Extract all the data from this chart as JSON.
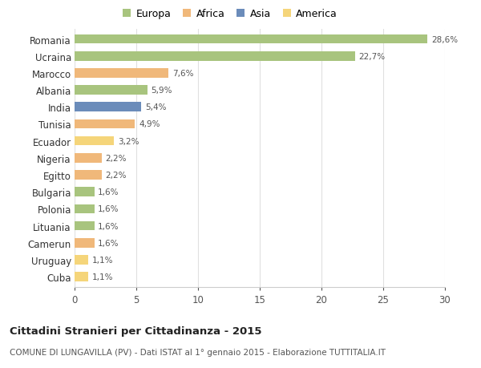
{
  "categories": [
    "Romania",
    "Ucraina",
    "Marocco",
    "Albania",
    "India",
    "Tunisia",
    "Ecuador",
    "Nigeria",
    "Egitto",
    "Bulgaria",
    "Polonia",
    "Lituania",
    "Camerun",
    "Uruguay",
    "Cuba"
  ],
  "values": [
    28.6,
    22.7,
    7.6,
    5.9,
    5.4,
    4.9,
    3.2,
    2.2,
    2.2,
    1.6,
    1.6,
    1.6,
    1.6,
    1.1,
    1.1
  ],
  "labels": [
    "28,6%",
    "22,7%",
    "7,6%",
    "5,9%",
    "5,4%",
    "4,9%",
    "3,2%",
    "2,2%",
    "2,2%",
    "1,6%",
    "1,6%",
    "1,6%",
    "1,6%",
    "1,1%",
    "1,1%"
  ],
  "colors": [
    "#a8c47e",
    "#a8c47e",
    "#f0b87a",
    "#a8c47e",
    "#6b8cba",
    "#f0b87a",
    "#f5d57a",
    "#f0b87a",
    "#f0b87a",
    "#a8c47e",
    "#a8c47e",
    "#a8c47e",
    "#f0b87a",
    "#f5d57a",
    "#f5d57a"
  ],
  "legend_labels": [
    "Europa",
    "Africa",
    "Asia",
    "America"
  ],
  "legend_colors": [
    "#a8c47e",
    "#f0b87a",
    "#6b8cba",
    "#f5d57a"
  ],
  "title": "Cittadini Stranieri per Cittadinanza - 2015",
  "subtitle": "COMUNE DI LUNGAVILLA (PV) - Dati ISTAT al 1° gennaio 2015 - Elaborazione TUTTITALIA.IT",
  "xlim": [
    0,
    30
  ],
  "xticks": [
    0,
    5,
    10,
    15,
    20,
    25,
    30
  ],
  "background_color": "#ffffff",
  "grid_color": "#e0e0e0"
}
